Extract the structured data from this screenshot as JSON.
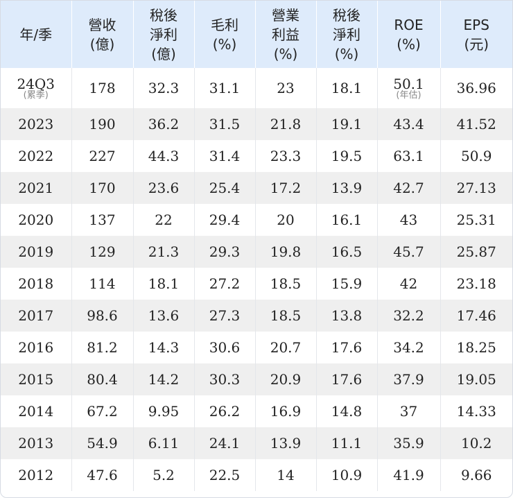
{
  "table": {
    "headers": [
      [
        "年/季"
      ],
      [
        "營收",
        "(億)"
      ],
      [
        "稅後",
        "淨利",
        "(億)"
      ],
      [
        "毛利",
        "(%)"
      ],
      [
        "營業",
        "利益",
        "(%)"
      ],
      [
        "稅後",
        "淨利",
        "(%)"
      ],
      [
        "ROE",
        "(%)"
      ],
      [
        "EPS",
        "(元)"
      ]
    ],
    "first_row": {
      "period": "24Q3",
      "period_note": "(累季)",
      "revenue": "178",
      "net_income": "32.3",
      "gross_margin": "31.1",
      "operating_margin": "23",
      "net_margin": "18.1",
      "roe": "50.1",
      "roe_note": "(年估)",
      "eps": "36.96"
    },
    "rows": [
      [
        "2023",
        "190",
        "36.2",
        "31.5",
        "21.8",
        "19.1",
        "43.4",
        "41.52"
      ],
      [
        "2022",
        "227",
        "44.3",
        "31.4",
        "23.3",
        "19.5",
        "63.1",
        "50.9"
      ],
      [
        "2021",
        "170",
        "23.6",
        "25.4",
        "17.2",
        "13.9",
        "42.7",
        "27.13"
      ],
      [
        "2020",
        "137",
        "22",
        "29.4",
        "20",
        "16.1",
        "43",
        "25.31"
      ],
      [
        "2019",
        "129",
        "21.3",
        "29.3",
        "19.8",
        "16.5",
        "45.7",
        "25.87"
      ],
      [
        "2018",
        "114",
        "18.1",
        "27.2",
        "18.5",
        "15.9",
        "42",
        "23.18"
      ],
      [
        "2017",
        "98.6",
        "13.6",
        "27.3",
        "18.5",
        "13.8",
        "32.2",
        "17.46"
      ],
      [
        "2016",
        "81.2",
        "14.3",
        "30.6",
        "20.7",
        "17.6",
        "34.2",
        "18.25"
      ],
      [
        "2015",
        "80.4",
        "14.2",
        "30.3",
        "20.9",
        "17.6",
        "37.9",
        "19.05"
      ],
      [
        "2014",
        "67.2",
        "9.95",
        "26.2",
        "16.9",
        "14.8",
        "37",
        "14.33"
      ],
      [
        "2013",
        "54.9",
        "6.11",
        "24.1",
        "13.9",
        "11.1",
        "35.9",
        "10.2"
      ],
      [
        "2012",
        "47.6",
        "5.2",
        "22.5",
        "14",
        "10.9",
        "41.9",
        "9.66"
      ]
    ]
  },
  "colors": {
    "header_bg": "#deebfb",
    "stripe_bg": "#efefef",
    "text": "#222222",
    "note_text": "#888888"
  }
}
